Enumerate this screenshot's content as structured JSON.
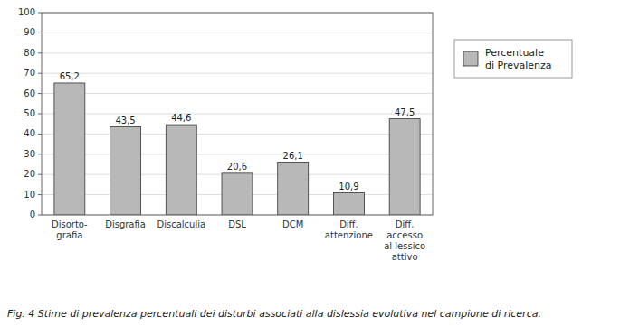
{
  "chart_data": {
    "type": "bar",
    "caption": "Fig. 4  Stime di prevalenza percentuali dei disturbi associati alla dislessia evolutiva nel campione di ricerca.",
    "categories": [
      "Disorto-\ngrafia",
      "Disgrafia",
      "Discalculia",
      "DSL",
      "DCM",
      "Diff.\nattenzione",
      "Diff.\naccesso\nal lessico\nattivo"
    ],
    "series": [
      {
        "name": "Percentuale\ndi Prevalenza",
        "color": "#b8b8b8",
        "values": [
          65.2,
          43.5,
          44.6,
          20.6,
          26.1,
          10.9,
          47.5
        ],
        "value_labels": [
          "65,2",
          "43,5",
          "44,6",
          "20,6",
          "26,1",
          "10,9",
          "47,5"
        ]
      }
    ],
    "ylim": [
      0,
      100
    ],
    "yticks": [
      0,
      10,
      20,
      30,
      40,
      50,
      60,
      70,
      80,
      90,
      100
    ],
    "grid": true,
    "legend": "right",
    "data_labels": true
  }
}
